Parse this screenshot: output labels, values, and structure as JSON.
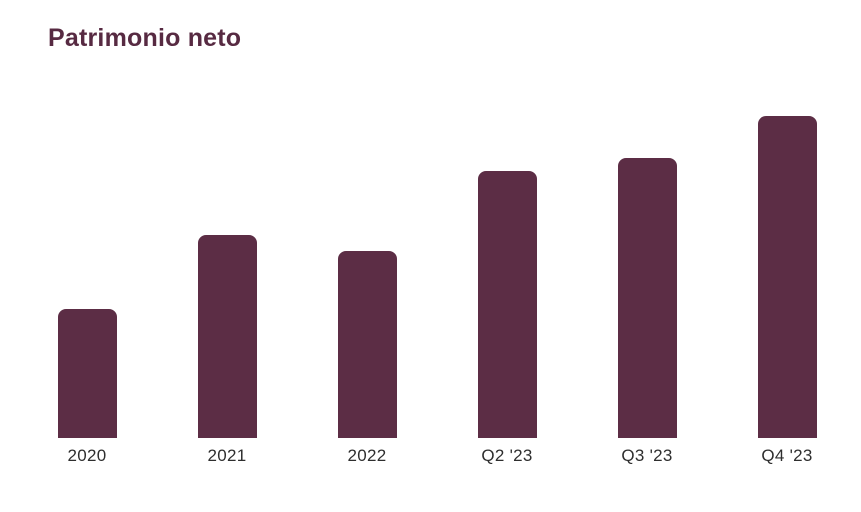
{
  "page": {
    "background_color": "#ffffff"
  },
  "header": {
    "title": "Patrimonio neto",
    "title_color": "#572a42"
  },
  "chart_data": {
    "type": "bar",
    "title": "Patrimonio neto",
    "categories": [
      "2020",
      "2021",
      "2022",
      "Q2 '23",
      "Q3 '23",
      "Q4 '23"
    ],
    "values": [
      40,
      63,
      58,
      83,
      87,
      100
    ],
    "values_note": "relative bar heights as percent of tallest bar; no numeric y-axis shown in chart",
    "series_name": "Patrimonio neto",
    "xlabel": "",
    "ylabel": "",
    "ylim": [
      0,
      100
    ],
    "y_axis_visible": false,
    "x_axis_line_visible": false,
    "gridlines": false,
    "legend_position": "none",
    "data_labels": false,
    "bar_color": "#5c2d45",
    "axis_label_color": "#2e2e2e"
  }
}
